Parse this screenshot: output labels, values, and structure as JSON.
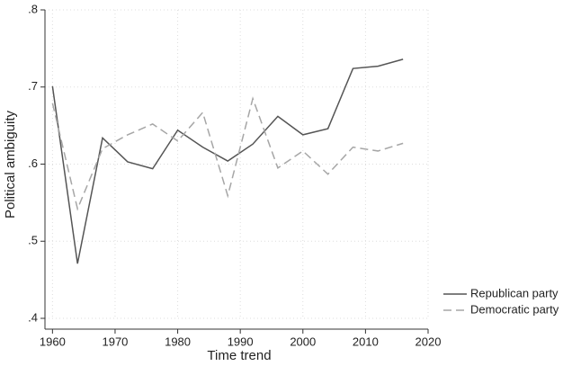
{
  "chart_data": {
    "type": "line",
    "x_label": "Time trend",
    "y_label": "Political ambiguity",
    "x": [
      1960,
      1964,
      1968,
      1972,
      1976,
      1980,
      1984,
      1988,
      1992,
      1996,
      2000,
      2004,
      2008,
      2012,
      2016
    ],
    "series": [
      {
        "name": "Republican party",
        "color": "#555555",
        "style": "solid",
        "values": [
          0.701,
          0.471,
          0.634,
          0.603,
          0.594,
          0.644,
          0.622,
          0.604,
          0.626,
          0.662,
          0.638,
          0.646,
          0.724,
          0.727,
          0.736
        ]
      },
      {
        "name": "Democratic party",
        "color": "#a6a6a6",
        "style": "dashed",
        "values": [
          0.679,
          0.542,
          0.62,
          0.638,
          0.652,
          0.63,
          0.667,
          0.559,
          0.685,
          0.595,
          0.617,
          0.587,
          0.622,
          0.617,
          0.627
        ]
      }
    ],
    "xlim": [
      1958.8,
      2020
    ],
    "xticks": [
      1960,
      1970,
      1980,
      1990,
      2000,
      2010,
      2020
    ],
    "ylim": [
      0.4,
      0.8
    ],
    "yticks": [
      {
        "value": 0.4,
        "label": ".4"
      },
      {
        "value": 0.5,
        "label": ".5"
      },
      {
        "value": 0.6,
        "label": ".6"
      },
      {
        "value": 0.7,
        "label": ".7"
      },
      {
        "value": 0.8,
        "label": ".8"
      }
    ],
    "grid": true,
    "legend": "bottom-right"
  }
}
